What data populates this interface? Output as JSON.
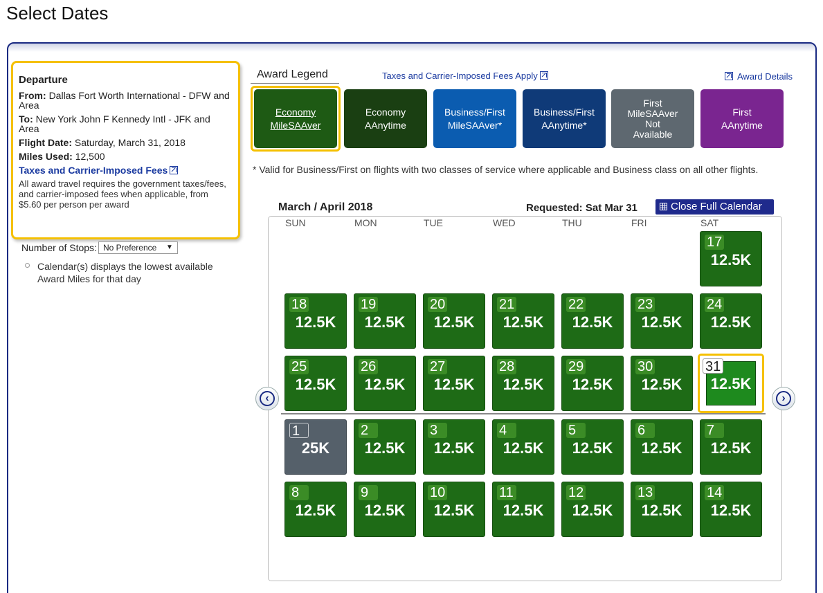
{
  "page_title": "Select Dates",
  "departure": {
    "heading": "Departure",
    "from_label": "From:",
    "from_value": "Dallas Fort Worth International - DFW and Area",
    "to_label": "To:",
    "to_value": "New York John F Kennedy Intl - JFK and Area",
    "flight_date_label": "Flight Date:",
    "flight_date_value": "Saturday, March 31, 2018",
    "miles_label": "Miles Used:",
    "miles_value": "12,500",
    "fees_link": "Taxes and Carrier-Imposed Fees",
    "fees_note": "All award travel requires the government taxes/fees, and carrier-imposed fees when applicable, from $5.60 per person per award"
  },
  "stops": {
    "label": "Number of Stops:",
    "selected": "No Preference"
  },
  "calendar_note": "Calendar(s) displays the lowest available Award Miles for that day",
  "legend": {
    "title": "Award Legend",
    "fees_link": "Taxes and Carrier-Imposed Fees Apply",
    "award_details_link": "Award Details",
    "tiles": [
      {
        "line1": "Economy",
        "line2": "MileSAAver",
        "line3": "",
        "line4": "",
        "color": "#1e5a14"
      },
      {
        "line1": "Economy",
        "line2": "AAnytime",
        "line3": "",
        "line4": "",
        "color": "#1a3f12"
      },
      {
        "line1": "Business/First",
        "line2": "MileSAAver*",
        "line3": "",
        "line4": "",
        "color": "#0b5cb0"
      },
      {
        "line1": "Business/First",
        "line2": "AAnytime*",
        "line3": "",
        "line4": "",
        "color": "#0f3a78"
      },
      {
        "line1": "First",
        "line2": "MileSAAver",
        "line3": "Not",
        "line4": "Available",
        "color": "#5e6870"
      },
      {
        "line1": "First",
        "line2": "AAnytime",
        "line3": "",
        "line4": "",
        "color": "#7a2590"
      }
    ]
  },
  "valid_note": "* Valid for Business/First on flights with two classes of service where applicable and Business class on all other flights.",
  "calendar": {
    "month_label": "March / April 2018",
    "requested_label": "Requested: Sat Mar 31",
    "close_button": "Close Full Calendar",
    "days_of_week": [
      "SUN",
      "MON",
      "TUE",
      "WED",
      "THU",
      "FRI",
      "SAT"
    ],
    "weeks": [
      [
        null,
        null,
        null,
        null,
        null,
        null,
        {
          "day": "17",
          "miles": "12.5K"
        }
      ],
      [
        {
          "day": "18",
          "miles": "12.5K"
        },
        {
          "day": "19",
          "miles": "12.5K"
        },
        {
          "day": "20",
          "miles": "12.5K"
        },
        {
          "day": "21",
          "miles": "12.5K"
        },
        {
          "day": "22",
          "miles": "12.5K"
        },
        {
          "day": "23",
          "miles": "12.5K"
        },
        {
          "day": "24",
          "miles": "12.5K"
        }
      ],
      [
        {
          "day": "25",
          "miles": "12.5K"
        },
        {
          "day": "26",
          "miles": "12.5K"
        },
        {
          "day": "27",
          "miles": "12.5K"
        },
        {
          "day": "28",
          "miles": "12.5K"
        },
        {
          "day": "29",
          "miles": "12.5K"
        },
        {
          "day": "30",
          "miles": "12.5K"
        },
        {
          "day": "31",
          "miles": "12.5K",
          "selected": true
        }
      ],
      [
        {
          "day": "1",
          "miles": "25K",
          "unavailable": true
        },
        {
          "day": "2",
          "miles": "12.5K"
        },
        {
          "day": "3",
          "miles": "12.5K"
        },
        {
          "day": "4",
          "miles": "12.5K"
        },
        {
          "day": "5",
          "miles": "12.5K"
        },
        {
          "day": "6",
          "miles": "12.5K"
        },
        {
          "day": "7",
          "miles": "12.5K"
        }
      ],
      [
        {
          "day": "8",
          "miles": "12.5K"
        },
        {
          "day": "9",
          "miles": "12.5K"
        },
        {
          "day": "10",
          "miles": "12.5K"
        },
        {
          "day": "11",
          "miles": "12.5K"
        },
        {
          "day": "12",
          "miles": "12.5K"
        },
        {
          "day": "13",
          "miles": "12.5K"
        },
        {
          "day": "14",
          "miles": "12.5K"
        }
      ]
    ]
  },
  "nav": {
    "prev_icon": "chevron-left-icon",
    "next_icon": "chevron-right-icon"
  }
}
